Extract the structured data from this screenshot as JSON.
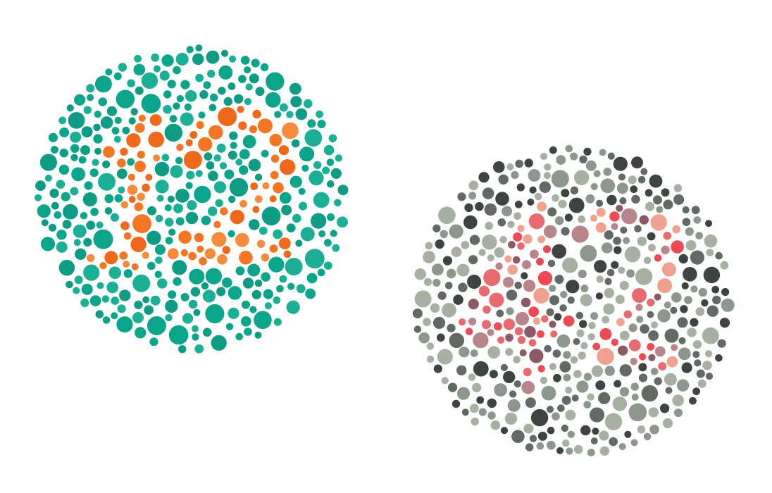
{
  "background": "#ffffff",
  "plates": [
    {
      "id": "plate-12",
      "shown_number": "12",
      "figure_colors": [
        "#f47522",
        "#f0681a",
        "#f88a3c"
      ],
      "background_colors": [
        "#0aa58a",
        "#0e9c84",
        "#1bb095"
      ]
    },
    {
      "id": "plate-42",
      "shown_number": "42",
      "figure_colors": [
        "#ee4a55",
        "#f0a28f",
        "#b8868a",
        "#8c5a64",
        "#e86a70"
      ],
      "background_colors": [
        "#3e4441",
        "#636a66",
        "#8e978d",
        "#a7b0a2"
      ]
    }
  ]
}
